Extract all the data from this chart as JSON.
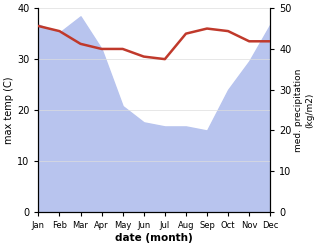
{
  "months": [
    "Jan",
    "Feb",
    "Mar",
    "Apr",
    "May",
    "Jun",
    "Jul",
    "Aug",
    "Sep",
    "Oct",
    "Nov",
    "Dec"
  ],
  "temp": [
    36.5,
    35.5,
    33.0,
    32.0,
    32.0,
    30.5,
    30.0,
    35.0,
    36.0,
    35.5,
    33.5,
    33.5
  ],
  "precip": [
    46,
    44,
    48,
    40,
    26,
    22,
    21,
    21,
    20,
    30,
    37,
    46
  ],
  "temp_color": "#c0392b",
  "precip_fill_color": "#b8c4ee",
  "ylabel_left": "max temp (C)",
  "ylabel_right": "med. precipitation\n(kg/m2)",
  "xlabel": "date (month)",
  "ylim_left": [
    0,
    40
  ],
  "ylim_right": [
    0,
    50
  ],
  "yticks_left": [
    0,
    10,
    20,
    30,
    40
  ],
  "yticks_right": [
    0,
    10,
    20,
    30,
    40,
    50
  ],
  "bg_color": "#ffffff"
}
